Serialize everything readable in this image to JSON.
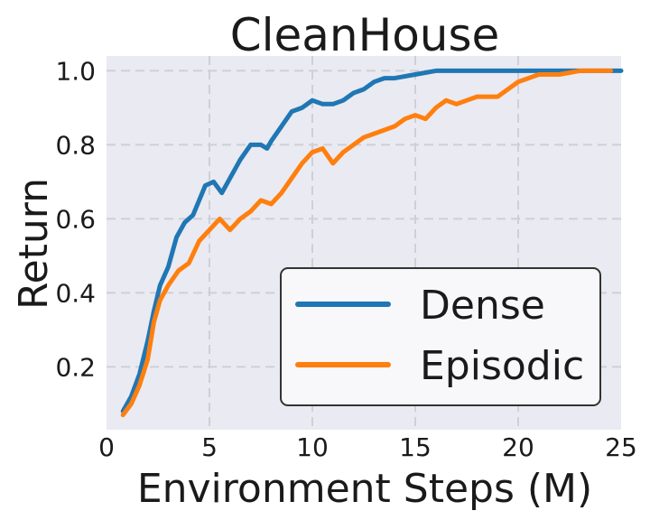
{
  "chart_data": {
    "type": "line",
    "title": "CleanHouse",
    "xlabel": "Environment Steps (M)",
    "ylabel": "Return",
    "xlim": [
      0,
      25
    ],
    "ylim": [
      0.03,
      1.04
    ],
    "xticks": [
      0,
      5,
      10,
      15,
      20,
      25
    ],
    "yticks": [
      0.2,
      0.4,
      0.6,
      0.8,
      1.0
    ],
    "xtick_labels": [
      "0",
      "5",
      "10",
      "15",
      "20",
      "25"
    ],
    "ytick_labels": [
      "0.2",
      "0.4",
      "0.6",
      "0.8",
      "1.0"
    ],
    "grid": true,
    "legend_position": "bottom-right",
    "series": [
      {
        "name": "Dense",
        "color": "#1f77b4",
        "points": [
          [
            0.8,
            0.08
          ],
          [
            1.2,
            0.12
          ],
          [
            1.6,
            0.18
          ],
          [
            2.0,
            0.27
          ],
          [
            2.3,
            0.35
          ],
          [
            2.6,
            0.42
          ],
          [
            3.0,
            0.47
          ],
          [
            3.4,
            0.55
          ],
          [
            3.8,
            0.59
          ],
          [
            4.2,
            0.61
          ],
          [
            4.5,
            0.65
          ],
          [
            4.8,
            0.69
          ],
          [
            5.2,
            0.7
          ],
          [
            5.6,
            0.67
          ],
          [
            6.0,
            0.71
          ],
          [
            6.5,
            0.76
          ],
          [
            7.0,
            0.8
          ],
          [
            7.5,
            0.8
          ],
          [
            7.8,
            0.79
          ],
          [
            8.0,
            0.81
          ],
          [
            8.5,
            0.85
          ],
          [
            9.0,
            0.89
          ],
          [
            9.5,
            0.9
          ],
          [
            10.0,
            0.92
          ],
          [
            10.5,
            0.91
          ],
          [
            11.0,
            0.91
          ],
          [
            11.5,
            0.92
          ],
          [
            12.0,
            0.94
          ],
          [
            12.5,
            0.95
          ],
          [
            13.0,
            0.97
          ],
          [
            13.5,
            0.98
          ],
          [
            14.0,
            0.98
          ],
          [
            15.0,
            0.99
          ],
          [
            16.0,
            1.0
          ],
          [
            17.0,
            1.0
          ],
          [
            18.0,
            1.0
          ],
          [
            19.0,
            1.0
          ],
          [
            20.0,
            1.0
          ],
          [
            21.0,
            1.0
          ],
          [
            22.0,
            1.0
          ],
          [
            23.0,
            1.0
          ],
          [
            24.0,
            1.0
          ],
          [
            25.0,
            1.0
          ]
        ]
      },
      {
        "name": "Episodic",
        "color": "#ff7f0e",
        "points": [
          [
            0.8,
            0.07
          ],
          [
            1.2,
            0.1
          ],
          [
            1.6,
            0.15
          ],
          [
            2.0,
            0.22
          ],
          [
            2.3,
            0.32
          ],
          [
            2.6,
            0.38
          ],
          [
            3.0,
            0.42
          ],
          [
            3.5,
            0.46
          ],
          [
            4.0,
            0.48
          ],
          [
            4.5,
            0.54
          ],
          [
            5.0,
            0.57
          ],
          [
            5.5,
            0.6
          ],
          [
            6.0,
            0.57
          ],
          [
            6.5,
            0.6
          ],
          [
            7.0,
            0.62
          ],
          [
            7.5,
            0.65
          ],
          [
            8.0,
            0.64
          ],
          [
            8.5,
            0.67
          ],
          [
            9.0,
            0.71
          ],
          [
            9.5,
            0.75
          ],
          [
            10.0,
            0.78
          ],
          [
            10.5,
            0.79
          ],
          [
            11.0,
            0.75
          ],
          [
            11.5,
            0.78
          ],
          [
            12.0,
            0.8
          ],
          [
            12.5,
            0.82
          ],
          [
            13.0,
            0.83
          ],
          [
            13.5,
            0.84
          ],
          [
            14.0,
            0.85
          ],
          [
            14.5,
            0.87
          ],
          [
            15.0,
            0.88
          ],
          [
            15.5,
            0.87
          ],
          [
            16.0,
            0.9
          ],
          [
            16.5,
            0.92
          ],
          [
            17.0,
            0.91
          ],
          [
            17.5,
            0.92
          ],
          [
            18.0,
            0.93
          ],
          [
            18.5,
            0.93
          ],
          [
            19.0,
            0.93
          ],
          [
            19.5,
            0.95
          ],
          [
            20.0,
            0.97
          ],
          [
            20.5,
            0.98
          ],
          [
            21.0,
            0.99
          ],
          [
            22.0,
            0.99
          ],
          [
            23.0,
            1.0
          ],
          [
            24.0,
            1.0
          ],
          [
            24.5,
            1.0
          ]
        ]
      }
    ]
  }
}
